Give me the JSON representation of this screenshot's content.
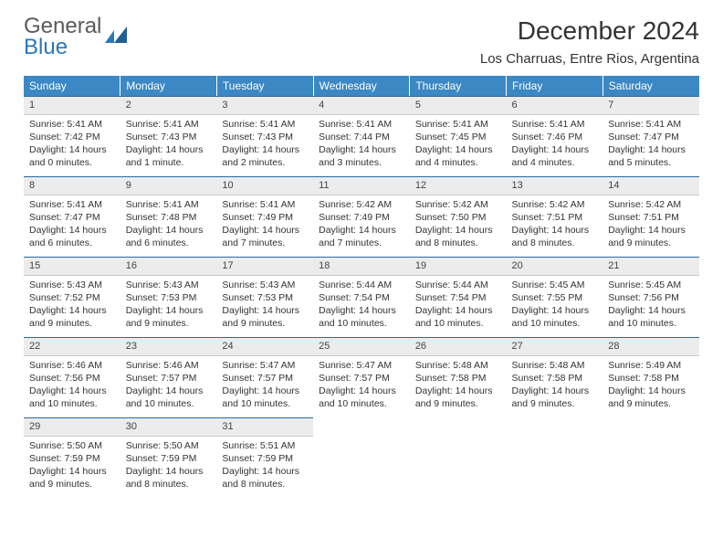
{
  "brand": {
    "top": "General",
    "bottom": "Blue"
  },
  "title": "December 2024",
  "location": "Los Charruas, Entre Rios, Argentina",
  "colors": {
    "header_bg": "#3b88c4",
    "header_text": "#ffffff",
    "daynum_bg": "#ececec",
    "row_border": "#2a6aa0",
    "brand_blue": "#2a77bb",
    "text": "#333333",
    "page_bg": "#ffffff"
  },
  "weekdays": [
    "Sunday",
    "Monday",
    "Tuesday",
    "Wednesday",
    "Thursday",
    "Friday",
    "Saturday"
  ],
  "weeks": [
    [
      {
        "n": "1",
        "sr": "Sunrise: 5:41 AM",
        "ss": "Sunset: 7:42 PM",
        "dl": "Daylight: 14 hours and 0 minutes."
      },
      {
        "n": "2",
        "sr": "Sunrise: 5:41 AM",
        "ss": "Sunset: 7:43 PM",
        "dl": "Daylight: 14 hours and 1 minute."
      },
      {
        "n": "3",
        "sr": "Sunrise: 5:41 AM",
        "ss": "Sunset: 7:43 PM",
        "dl": "Daylight: 14 hours and 2 minutes."
      },
      {
        "n": "4",
        "sr": "Sunrise: 5:41 AM",
        "ss": "Sunset: 7:44 PM",
        "dl": "Daylight: 14 hours and 3 minutes."
      },
      {
        "n": "5",
        "sr": "Sunrise: 5:41 AM",
        "ss": "Sunset: 7:45 PM",
        "dl": "Daylight: 14 hours and 4 minutes."
      },
      {
        "n": "6",
        "sr": "Sunrise: 5:41 AM",
        "ss": "Sunset: 7:46 PM",
        "dl": "Daylight: 14 hours and 4 minutes."
      },
      {
        "n": "7",
        "sr": "Sunrise: 5:41 AM",
        "ss": "Sunset: 7:47 PM",
        "dl": "Daylight: 14 hours and 5 minutes."
      }
    ],
    [
      {
        "n": "8",
        "sr": "Sunrise: 5:41 AM",
        "ss": "Sunset: 7:47 PM",
        "dl": "Daylight: 14 hours and 6 minutes."
      },
      {
        "n": "9",
        "sr": "Sunrise: 5:41 AM",
        "ss": "Sunset: 7:48 PM",
        "dl": "Daylight: 14 hours and 6 minutes."
      },
      {
        "n": "10",
        "sr": "Sunrise: 5:41 AM",
        "ss": "Sunset: 7:49 PM",
        "dl": "Daylight: 14 hours and 7 minutes."
      },
      {
        "n": "11",
        "sr": "Sunrise: 5:42 AM",
        "ss": "Sunset: 7:49 PM",
        "dl": "Daylight: 14 hours and 7 minutes."
      },
      {
        "n": "12",
        "sr": "Sunrise: 5:42 AM",
        "ss": "Sunset: 7:50 PM",
        "dl": "Daylight: 14 hours and 8 minutes."
      },
      {
        "n": "13",
        "sr": "Sunrise: 5:42 AM",
        "ss": "Sunset: 7:51 PM",
        "dl": "Daylight: 14 hours and 8 minutes."
      },
      {
        "n": "14",
        "sr": "Sunrise: 5:42 AM",
        "ss": "Sunset: 7:51 PM",
        "dl": "Daylight: 14 hours and 9 minutes."
      }
    ],
    [
      {
        "n": "15",
        "sr": "Sunrise: 5:43 AM",
        "ss": "Sunset: 7:52 PM",
        "dl": "Daylight: 14 hours and 9 minutes."
      },
      {
        "n": "16",
        "sr": "Sunrise: 5:43 AM",
        "ss": "Sunset: 7:53 PM",
        "dl": "Daylight: 14 hours and 9 minutes."
      },
      {
        "n": "17",
        "sr": "Sunrise: 5:43 AM",
        "ss": "Sunset: 7:53 PM",
        "dl": "Daylight: 14 hours and 9 minutes."
      },
      {
        "n": "18",
        "sr": "Sunrise: 5:44 AM",
        "ss": "Sunset: 7:54 PM",
        "dl": "Daylight: 14 hours and 10 minutes."
      },
      {
        "n": "19",
        "sr": "Sunrise: 5:44 AM",
        "ss": "Sunset: 7:54 PM",
        "dl": "Daylight: 14 hours and 10 minutes."
      },
      {
        "n": "20",
        "sr": "Sunrise: 5:45 AM",
        "ss": "Sunset: 7:55 PM",
        "dl": "Daylight: 14 hours and 10 minutes."
      },
      {
        "n": "21",
        "sr": "Sunrise: 5:45 AM",
        "ss": "Sunset: 7:56 PM",
        "dl": "Daylight: 14 hours and 10 minutes."
      }
    ],
    [
      {
        "n": "22",
        "sr": "Sunrise: 5:46 AM",
        "ss": "Sunset: 7:56 PM",
        "dl": "Daylight: 14 hours and 10 minutes."
      },
      {
        "n": "23",
        "sr": "Sunrise: 5:46 AM",
        "ss": "Sunset: 7:57 PM",
        "dl": "Daylight: 14 hours and 10 minutes."
      },
      {
        "n": "24",
        "sr": "Sunrise: 5:47 AM",
        "ss": "Sunset: 7:57 PM",
        "dl": "Daylight: 14 hours and 10 minutes."
      },
      {
        "n": "25",
        "sr": "Sunrise: 5:47 AM",
        "ss": "Sunset: 7:57 PM",
        "dl": "Daylight: 14 hours and 10 minutes."
      },
      {
        "n": "26",
        "sr": "Sunrise: 5:48 AM",
        "ss": "Sunset: 7:58 PM",
        "dl": "Daylight: 14 hours and 9 minutes."
      },
      {
        "n": "27",
        "sr": "Sunrise: 5:48 AM",
        "ss": "Sunset: 7:58 PM",
        "dl": "Daylight: 14 hours and 9 minutes."
      },
      {
        "n": "28",
        "sr": "Sunrise: 5:49 AM",
        "ss": "Sunset: 7:58 PM",
        "dl": "Daylight: 14 hours and 9 minutes."
      }
    ],
    [
      {
        "n": "29",
        "sr": "Sunrise: 5:50 AM",
        "ss": "Sunset: 7:59 PM",
        "dl": "Daylight: 14 hours and 9 minutes."
      },
      {
        "n": "30",
        "sr": "Sunrise: 5:50 AM",
        "ss": "Sunset: 7:59 PM",
        "dl": "Daylight: 14 hours and 8 minutes."
      },
      {
        "n": "31",
        "sr": "Sunrise: 5:51 AM",
        "ss": "Sunset: 7:59 PM",
        "dl": "Daylight: 14 hours and 8 minutes."
      },
      null,
      null,
      null,
      null
    ]
  ]
}
